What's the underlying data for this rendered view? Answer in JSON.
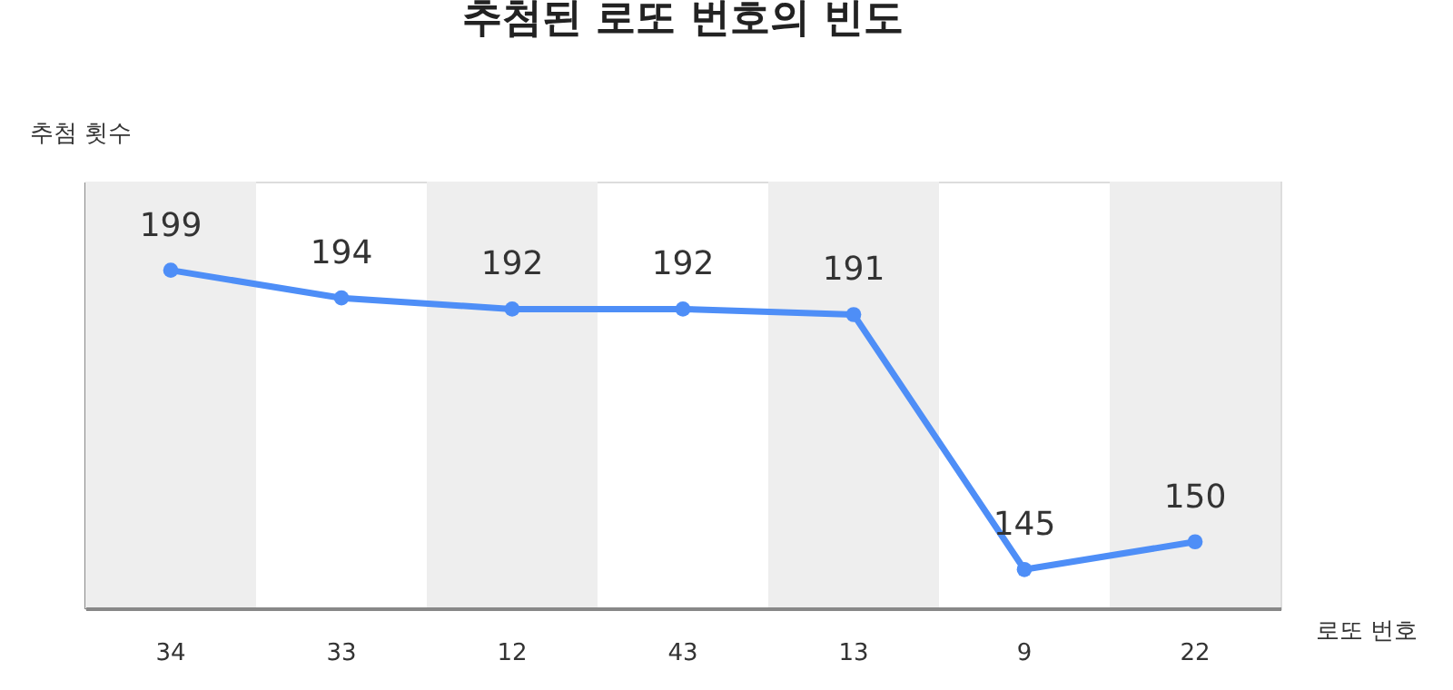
{
  "chart_data": {
    "type": "line",
    "title": "추첨된 로또 번호의 빈도",
    "xlabel": "로또 번호",
    "ylabel": "추첨 횟수",
    "categories": [
      "34",
      "33",
      "12",
      "43",
      "13",
      "9",
      "22"
    ],
    "series": [
      {
        "color": "#4e8ef7",
        "values": [
          199,
          194,
          192,
          192,
          191,
          145,
          150
        ]
      }
    ],
    "ylim": [
      138,
      215
    ],
    "marker": "circle",
    "data_labels": true,
    "grid": false,
    "bands": [
      {
        "axis": "x",
        "from": "34",
        "to": "34",
        "color": "#eeeeee"
      },
      {
        "axis": "x",
        "from": "12",
        "to": "12",
        "color": "#eeeeee"
      },
      {
        "axis": "x",
        "from": "13",
        "to": "13",
        "color": "#eeeeee"
      },
      {
        "axis": "x",
        "from": "22",
        "to": "22",
        "color": "#eeeeee"
      }
    ]
  }
}
